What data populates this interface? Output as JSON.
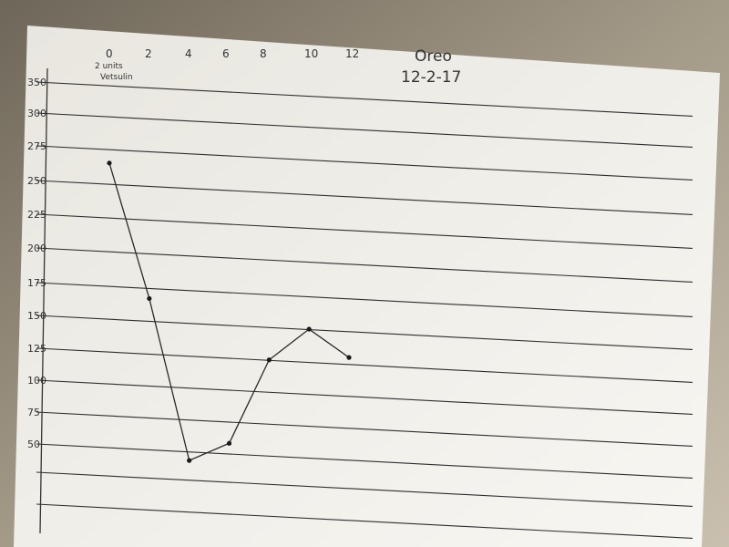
{
  "chart_data": {
    "type": "line",
    "title": "Oreo",
    "subtitle": "12-2-17",
    "x_note": "2 units Vetsulin",
    "x_ticks": [
      "0",
      "2",
      "4",
      "6",
      "8",
      "10",
      "12"
    ],
    "y_ticks": [
      "350",
      "300",
      "275",
      "250",
      "225",
      "200",
      "175",
      "150",
      "125",
      "100",
      "75",
      "50"
    ],
    "x": [
      0,
      2,
      4,
      6,
      8,
      10,
      12
    ],
    "y": [
      265,
      167,
      42,
      58,
      125,
      150,
      130
    ],
    "grid": true,
    "line_color": "#2a2a2a",
    "paper_color": "#f4f3ef"
  }
}
